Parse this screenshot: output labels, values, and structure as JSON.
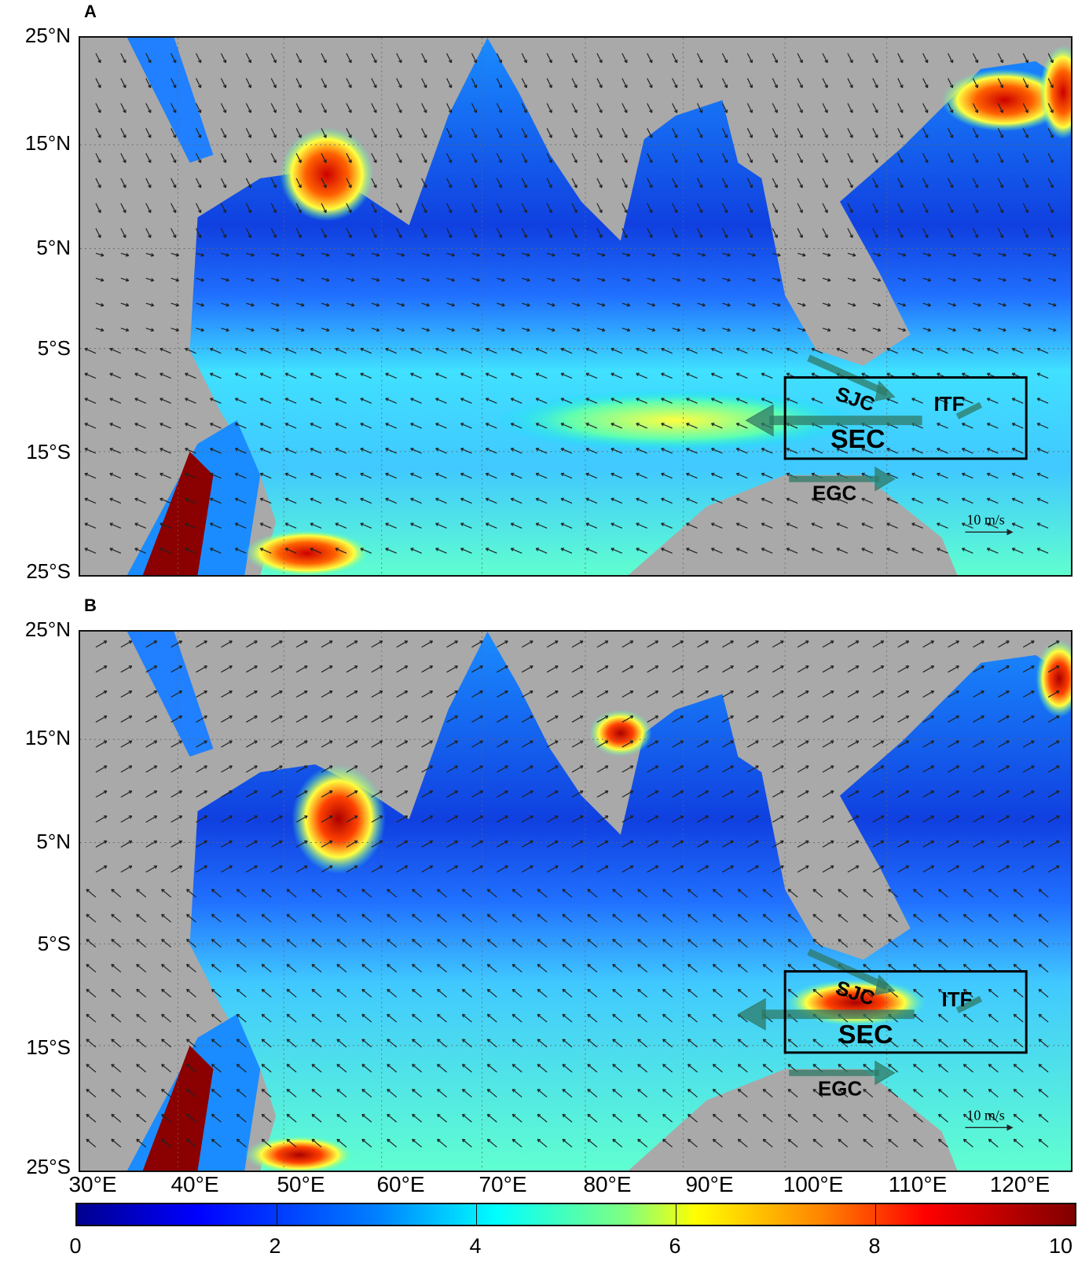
{
  "panels": [
    {
      "letter": "A",
      "scale_label": "10 m/s"
    },
    {
      "letter": "B",
      "scale_label": "10 m/s"
    }
  ],
  "currents": {
    "sjc": "SJC",
    "itf": "ITF",
    "sec": "SEC",
    "egc": "EGC"
  },
  "axes": {
    "lat_ticks": [
      "25°N",
      "15°N",
      "5°N",
      "5°S",
      "15°S",
      "25°S"
    ],
    "lon_ticks": [
      "30°E",
      "40°E",
      "50°E",
      "60°E",
      "70°E",
      "80°E",
      "90°E",
      "100°E",
      "110°E",
      "120°E"
    ],
    "lat_range": [
      -25,
      25
    ],
    "lon_range": [
      30,
      125
    ]
  },
  "colorbar": {
    "ticks": [
      "0",
      "2",
      "4",
      "6",
      "8",
      "10"
    ],
    "range": [
      0,
      10
    ],
    "colormap": "jet"
  },
  "colors": {
    "land": "#a9a9a9",
    "box": "#000000",
    "current_arrow": "#2f7a66"
  }
}
